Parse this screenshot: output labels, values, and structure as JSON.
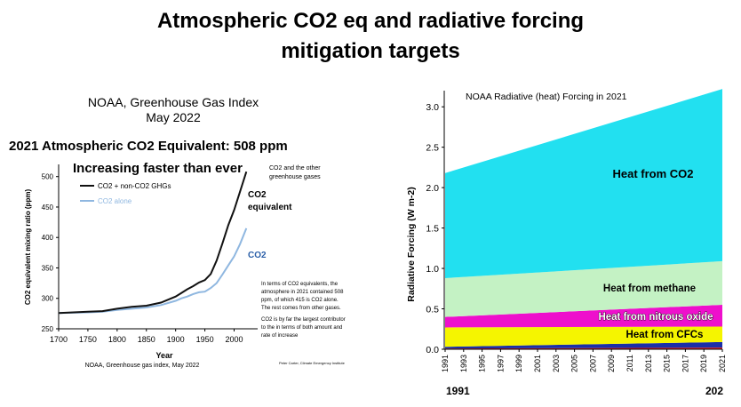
{
  "page": {
    "title_line1": "Atmospheric CO2 eq and radiative forcing",
    "title_line2": "mitigation targets"
  },
  "left_panel": {
    "header_line1": "NOAA, Greenhouse Gas Index",
    "header_line2": "May 2022",
    "headline": "2021 Atmospheric CO2 Equivalent: 508 ppm",
    "subheadline": "Increasing faster than ever",
    "side_note_line1": "CO2 and the other",
    "side_note_line2": "greenhouse gases",
    "label_co2eq_line1": "CO2",
    "label_co2eq_line2": "equivalent",
    "label_co2": "CO2",
    "note_paragraph1": [
      "In terms of CO2 equivalents, the",
      "atmosphere in 2021 contained 508",
      "ppm, of which 415 is CO2 alone.",
      "The rest comes from other gases."
    ],
    "note_paragraph2": [
      "CO2 is by far the largest contributor",
      "to the in terms of both amount and",
      "rate of increase"
    ],
    "source": "NOAA, Greenhouse gas index, May 2022",
    "credit": "Peter Carter, Climate Emergency Institute"
  },
  "right_panel": {
    "bottom_left": "1991",
    "bottom_right": "202"
  },
  "colors": {
    "co2_area": "#22e0f0",
    "methane_area": "#c4f2c4",
    "nitrous_area": "#ee10cc",
    "cfc_area": "#f5f500",
    "other_blue": "#1a2fa8",
    "other_red": "#e01818",
    "co2eq_line": "#111111",
    "co2_line": "#8fb7e0",
    "co2_label": "#2a5fa8"
  },
  "chart_data": [
    {
      "type": "line",
      "title": "",
      "xlabel": "Year",
      "ylabel": "CO2 equivalent mixing ratio (ppm)",
      "xlim": [
        1700,
        2022
      ],
      "ylim": [
        250,
        520
      ],
      "xticks": [
        1700,
        1750,
        1800,
        1850,
        1900,
        1950,
        2000
      ],
      "yticks": [
        250,
        300,
        350,
        400,
        450,
        500
      ],
      "grid": false,
      "legend": "top-left",
      "series": [
        {
          "name": "CO2 + non-CO2 GHGs",
          "x": [
            1700,
            1750,
            1775,
            1800,
            1825,
            1850,
            1875,
            1900,
            1910,
            1920,
            1930,
            1940,
            1950,
            1960,
            1970,
            1980,
            1990,
            2000,
            2010,
            2021
          ],
          "y": [
            276,
            278,
            279,
            283,
            286,
            288,
            293,
            303,
            309,
            315,
            320,
            326,
            330,
            340,
            362,
            390,
            420,
            445,
            475,
            508
          ]
        },
        {
          "name": "CO2 alone",
          "x": [
            1700,
            1750,
            1775,
            1800,
            1825,
            1850,
            1875,
            1900,
            1910,
            1920,
            1930,
            1940,
            1950,
            1960,
            1970,
            1980,
            1990,
            2000,
            2010,
            2021
          ],
          "y": [
            276,
            277,
            278,
            281,
            283,
            285,
            289,
            296,
            300,
            303,
            307,
            310,
            311,
            317,
            325,
            339,
            354,
            369,
            389,
            415
          ]
        }
      ]
    },
    {
      "type": "area",
      "title": "NOAA Radiative (heat) Forcing in 2021",
      "xlabel": "",
      "ylabel": "Radiative Forcing (W m-2)",
      "xlim": [
        1991,
        2021
      ],
      "ylim": [
        0,
        3.2
      ],
      "xticks": [
        1991,
        1993,
        1995,
        1997,
        1999,
        2001,
        2003,
        2005,
        2007,
        2009,
        2011,
        2013,
        2015,
        2017,
        2019,
        2021
      ],
      "yticks": [
        0.0,
        0.5,
        1.0,
        1.5,
        2.0,
        2.5,
        3.0
      ],
      "grid": false,
      "stacked": true,
      "x": [
        1991,
        2021
      ],
      "series": [
        {
          "name": "Other (red)",
          "values": [
            0.01,
            0.02
          ]
        },
        {
          "name": "Other (blue)",
          "values": [
            0.02,
            0.07
          ]
        },
        {
          "name": "Heat from CFCs",
          "values": [
            0.24,
            0.19
          ]
        },
        {
          "name": "Heat from nitrous oxide",
          "values": [
            0.13,
            0.27
          ]
        },
        {
          "name": "Heat from methane",
          "values": [
            0.48,
            0.54
          ]
        },
        {
          "name": "Heat from CO2",
          "values": [
            1.3,
            2.13
          ]
        }
      ]
    }
  ]
}
